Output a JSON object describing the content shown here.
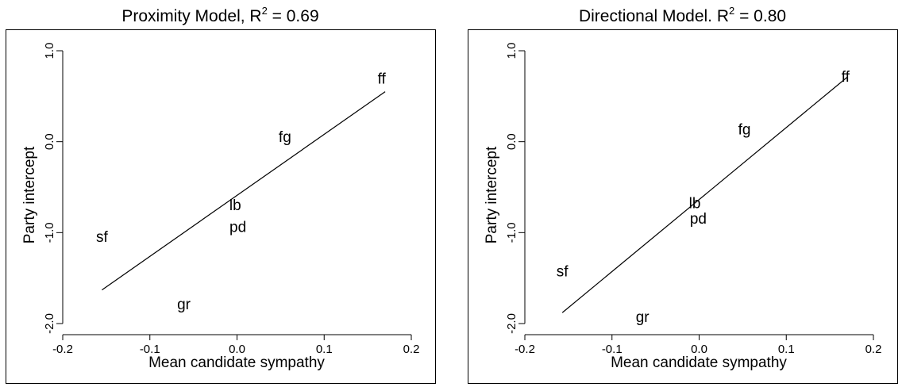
{
  "chart_data": [
    {
      "type": "scatter",
      "title": {
        "main": "Proximity Model, R",
        "sup": "2",
        "rest": " = 0.69"
      },
      "xlabel": "Mean candidate sympathy",
      "ylabel": "Party intercept",
      "xlim": [
        -0.2,
        0.2
      ],
      "ylim": [
        -2.0,
        1.0
      ],
      "xticks": [
        {
          "v": -0.2,
          "label": "-0.2"
        },
        {
          "v": -0.1,
          "label": "-0.1"
        },
        {
          "v": 0.0,
          "label": "0.0"
        },
        {
          "v": 0.1,
          "label": "0.1"
        },
        {
          "v": 0.2,
          "label": "0.2"
        }
      ],
      "yticks": [
        {
          "v": -2.0,
          "label": "-2.0"
        },
        {
          "v": -1.0,
          "label": "-1.0"
        },
        {
          "v": 0.0,
          "label": "0.0"
        },
        {
          "v": 1.0,
          "label": "1.0"
        }
      ],
      "points": [
        {
          "label": "ff",
          "x": 0.166,
          "y": 0.7
        },
        {
          "label": "fg",
          "x": 0.055,
          "y": 0.06
        },
        {
          "label": "lb",
          "x": -0.002,
          "y": -0.69
        },
        {
          "label": "pd",
          "x": 0.001,
          "y": -0.93
        },
        {
          "label": "sf",
          "x": -0.155,
          "y": -1.04
        },
        {
          "label": "gr",
          "x": -0.061,
          "y": -1.78
        }
      ],
      "fit_line": {
        "x": [
          -0.155,
          0.17
        ],
        "y": [
          -1.63,
          0.55
        ]
      },
      "grid": false
    },
    {
      "type": "scatter",
      "title": {
        "main": "Directional Model. R",
        "sup": "2",
        "rest": " = 0.80"
      },
      "xlabel": "Mean candidate sympathy",
      "ylabel": "Party intercept",
      "xlim": [
        -0.2,
        0.2
      ],
      "ylim": [
        -2.0,
        1.0
      ],
      "xticks": [
        {
          "v": -0.2,
          "label": "-0.2"
        },
        {
          "v": -0.1,
          "label": "-0.1"
        },
        {
          "v": 0.0,
          "label": "0.0"
        },
        {
          "v": 0.1,
          "label": "0.1"
        },
        {
          "v": 0.2,
          "label": "0.2"
        }
      ],
      "yticks": [
        {
          "v": -2.0,
          "label": "-2.0"
        },
        {
          "v": -1.0,
          "label": "-1.0"
        },
        {
          "v": 0.0,
          "label": "0.0"
        },
        {
          "v": 1.0,
          "label": "1.0"
        }
      ],
      "points": [
        {
          "label": "ff",
          "x": 0.168,
          "y": 0.72
        },
        {
          "label": "fg",
          "x": 0.052,
          "y": 0.14
        },
        {
          "label": "lb",
          "x": -0.005,
          "y": -0.67
        },
        {
          "label": "pd",
          "x": -0.001,
          "y": -0.84
        },
        {
          "label": "sf",
          "x": -0.157,
          "y": -1.42
        },
        {
          "label": "gr",
          "x": -0.065,
          "y": -1.92
        }
      ],
      "fit_line": {
        "x": [
          -0.157,
          0.17
        ],
        "y": [
          -1.88,
          0.71
        ]
      },
      "grid": false
    }
  ]
}
